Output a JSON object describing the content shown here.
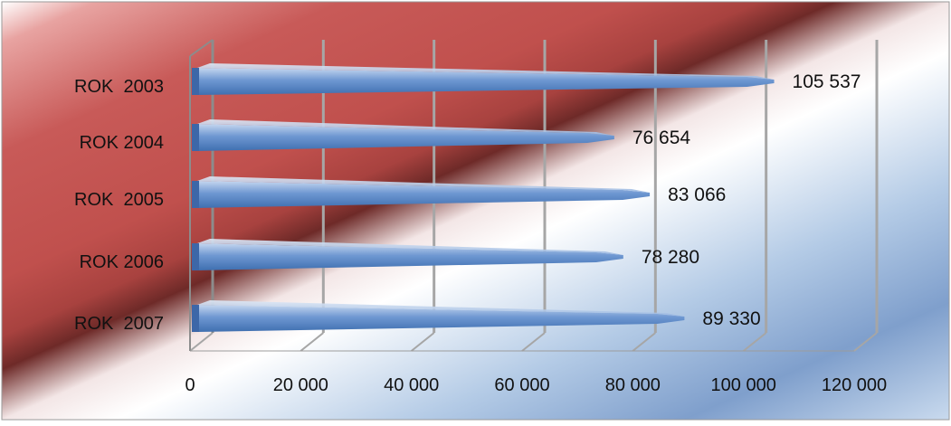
{
  "chart_data": {
    "type": "bar",
    "orientation": "horizontal",
    "categories": [
      "ROK  2003",
      "ROK 2004",
      "ROK  2005",
      "ROK 2006",
      "ROK  2007"
    ],
    "values": [
      105537,
      76654,
      83066,
      78280,
      89330
    ],
    "value_labels": [
      "105 537",
      "76 654",
      "83 066",
      "78 280",
      "89 330"
    ],
    "xlim": [
      0,
      120000
    ],
    "x_ticks": [
      0,
      20000,
      40000,
      60000,
      80000,
      100000,
      120000
    ],
    "x_tick_labels": [
      "0",
      "20 000",
      "40 000",
      "60 000",
      "80 000",
      "100 000",
      "120 000"
    ],
    "title": "",
    "xlabel": "",
    "ylabel": "",
    "grid": true,
    "legend": "none",
    "colors": {
      "bar": "#4f81bd",
      "bar_light": "#a9c4e8",
      "background_red": "#c0504d",
      "background_blue": "#8fb0d8",
      "gridline": "#a6a6a6"
    }
  }
}
